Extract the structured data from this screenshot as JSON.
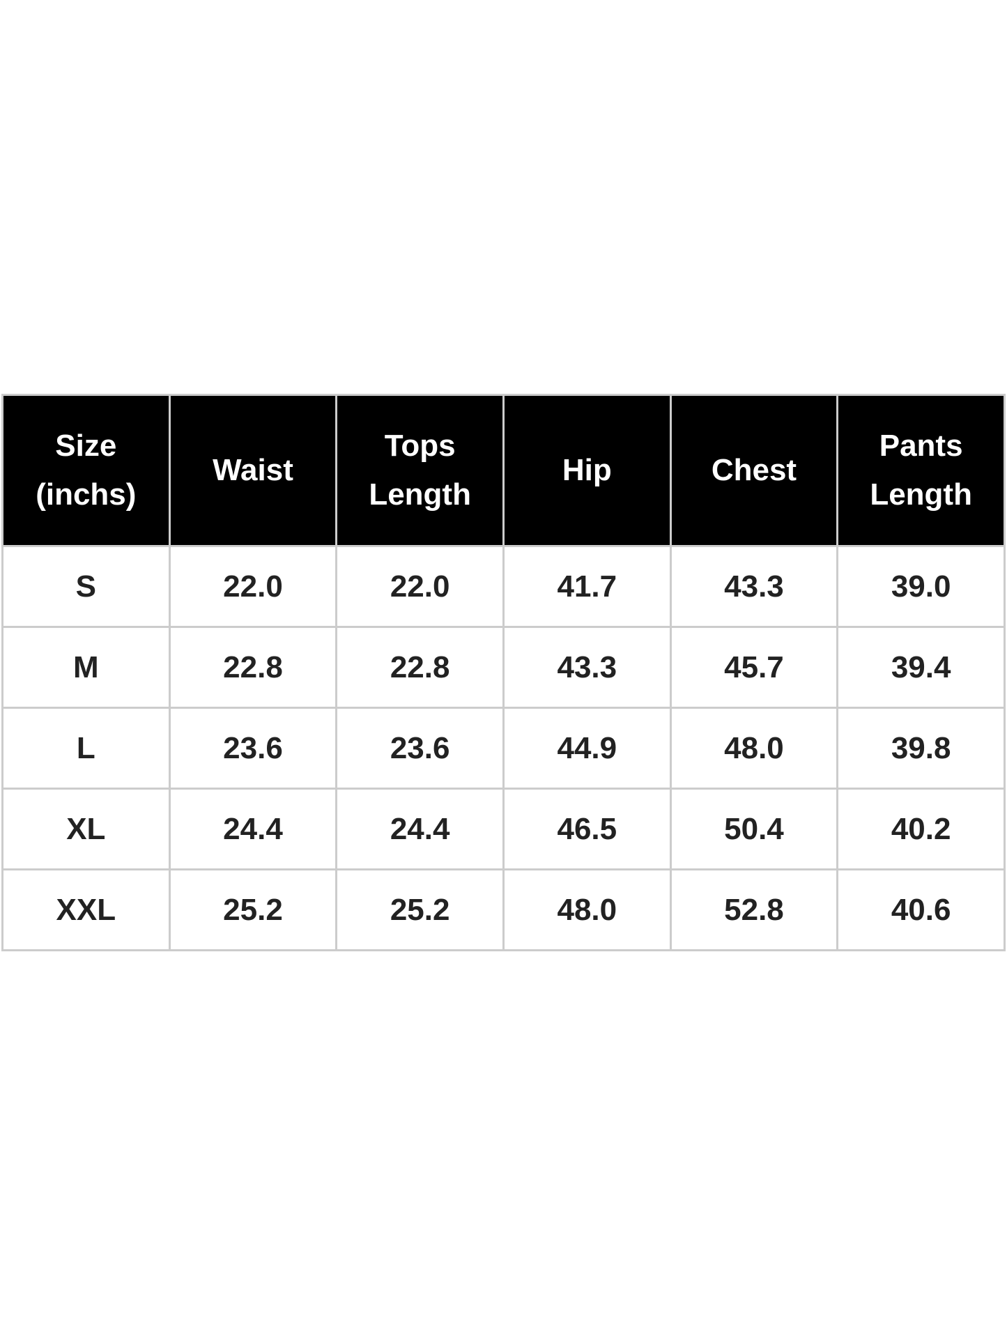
{
  "table": {
    "headers": [
      [
        "Size",
        "(inchs)"
      ],
      [
        "Waist"
      ],
      [
        "Tops",
        "Length"
      ],
      [
        "Hip"
      ],
      [
        "Chest"
      ],
      [
        "Pants",
        "Length"
      ]
    ],
    "rows": [
      [
        "S",
        "22.0",
        "22.0",
        "41.7",
        "43.3",
        "39.0"
      ],
      [
        "M",
        "22.8",
        "22.8",
        "43.3",
        "45.7",
        "39.4"
      ],
      [
        "L",
        "23.6",
        "23.6",
        "44.9",
        "48.0",
        "39.8"
      ],
      [
        "XL",
        "24.4",
        "24.4",
        "46.5",
        "50.4",
        "40.2"
      ],
      [
        "XXL",
        "25.2",
        "25.2",
        "48.0",
        "52.8",
        "40.6"
      ]
    ]
  }
}
